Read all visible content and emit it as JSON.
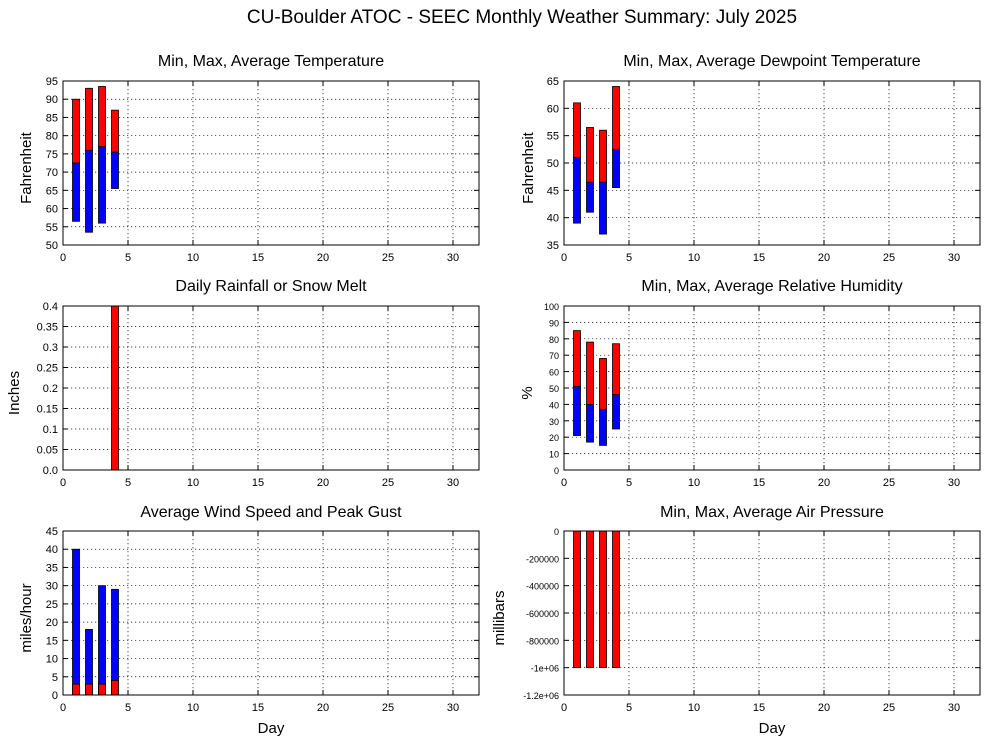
{
  "title": "CU-Boulder ATOC - SEEC Monthly Weather Summary: July 2025",
  "colors": {
    "low_segment": "#0000ff",
    "high_segment": "#ff0000",
    "outline": "#000000"
  },
  "chart_data": [
    {
      "id": "temperature",
      "type": "bar",
      "title": "Min, Max, Average Temperature",
      "xlabel": "",
      "ylabel": "Fahrenheit",
      "xlim": [
        0,
        32
      ],
      "xticks": [
        0,
        5,
        10,
        15,
        20,
        25,
        30
      ],
      "ylim": [
        50,
        95
      ],
      "yticks": [
        50,
        55,
        60,
        65,
        70,
        75,
        80,
        85,
        90,
        95
      ],
      "grid": true,
      "days": [
        1,
        2,
        3,
        4
      ],
      "min": [
        56.5,
        53.5,
        56,
        65.5
      ],
      "avg": [
        72.5,
        76,
        77,
        75.5
      ],
      "max": [
        90,
        93,
        93.5,
        87
      ]
    },
    {
      "id": "dewpoint",
      "type": "bar",
      "title": "Min, Max, Average Dewpoint Temperature",
      "xlabel": "",
      "ylabel": "Fahrenheit",
      "xlim": [
        0,
        32
      ],
      "xticks": [
        0,
        5,
        10,
        15,
        20,
        25,
        30
      ],
      "ylim": [
        35,
        65
      ],
      "yticks": [
        35,
        40,
        45,
        50,
        55,
        60,
        65
      ],
      "grid": true,
      "days": [
        1,
        2,
        3,
        4
      ],
      "min": [
        39,
        41,
        37,
        45.5
      ],
      "avg": [
        51,
        46.5,
        46.5,
        52.5
      ],
      "max": [
        61,
        56.5,
        56,
        64
      ]
    },
    {
      "id": "rainfall",
      "type": "bar",
      "title": "Daily Rainfall or Snow Melt",
      "xlabel": "",
      "ylabel": "Inches",
      "xlim": [
        0,
        32
      ],
      "xticks": [
        0,
        5,
        10,
        15,
        20,
        25,
        30
      ],
      "ylim": [
        0,
        0.4
      ],
      "yticks": [
        0.0,
        0.05,
        0.1,
        0.15,
        0.2,
        0.25,
        0.3,
        0.35,
        0.4
      ],
      "ytick_labels": [
        "0.0",
        "0.05",
        "0.1",
        "0.15",
        "0.2",
        "0.25",
        "0.3",
        "0.35",
        "0.4"
      ],
      "grid": true,
      "days": [
        1,
        2,
        3,
        4
      ],
      "values": [
        0,
        0,
        0,
        0.4
      ]
    },
    {
      "id": "humidity",
      "type": "bar",
      "title": "Min, Max, Average Relative Humidity",
      "xlabel": "",
      "ylabel": "%",
      "xlim": [
        0,
        32
      ],
      "xticks": [
        0,
        5,
        10,
        15,
        20,
        25,
        30
      ],
      "ylim": [
        0,
        100
      ],
      "yticks": [
        0,
        10,
        20,
        30,
        40,
        50,
        60,
        70,
        80,
        90,
        100
      ],
      "grid": true,
      "days": [
        1,
        2,
        3,
        4
      ],
      "min": [
        21,
        17,
        15,
        25
      ],
      "avg": [
        51,
        40,
        37,
        46
      ],
      "max": [
        85,
        78,
        68,
        77
      ]
    },
    {
      "id": "wind",
      "type": "bar",
      "title": "Average Wind Speed and Peak Gust",
      "xlabel": "Day",
      "ylabel": "miles/hour",
      "xlim": [
        0,
        32
      ],
      "xticks": [
        0,
        5,
        10,
        15,
        20,
        25,
        30
      ],
      "ylim": [
        0,
        45
      ],
      "yticks": [
        0,
        5,
        10,
        15,
        20,
        25,
        30,
        35,
        40,
        45
      ],
      "grid": true,
      "days": [
        1,
        2,
        3,
        4
      ],
      "avg": [
        3,
        3,
        3,
        4
      ],
      "peak": [
        40,
        18,
        30,
        29
      ]
    },
    {
      "id": "pressure",
      "type": "bar",
      "title": "Min, Max, Average Air Pressure",
      "xlabel": "Day",
      "ylabel": "millibars",
      "xlim": [
        0,
        32
      ],
      "xticks": [
        0,
        5,
        10,
        15,
        20,
        25,
        30
      ],
      "ylim": [
        -1200000,
        0
      ],
      "yticks": [
        0,
        -200000,
        -400000,
        -600000,
        -800000,
        -1000000,
        -1200000
      ],
      "ytick_labels": [
        "0",
        "-200000",
        "-400000",
        "-600000",
        "-800000",
        "-1e+06",
        "-1.2e+06"
      ],
      "grid": true,
      "days": [
        1,
        2,
        3,
        4
      ],
      "min": [
        -1000000,
        -1000000,
        -1000000,
        -1000000
      ],
      "max": [
        0,
        0,
        0,
        0
      ]
    }
  ]
}
